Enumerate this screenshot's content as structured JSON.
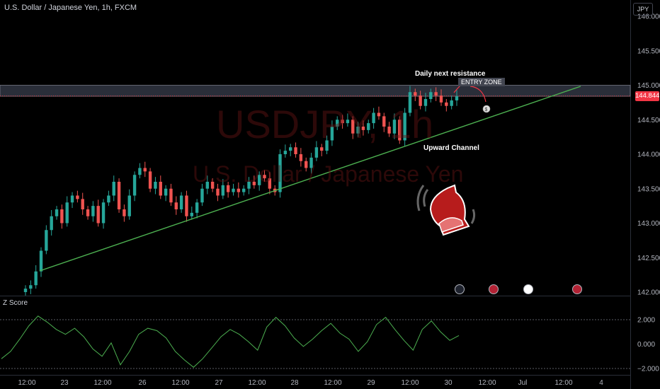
{
  "header": {
    "symbol_title": "U.S. Dollar / Japanese Yen, 1h, FXCM"
  },
  "watermark": {
    "line1": "USDJPY, 1h",
    "line2": "U.S. Dollar / Japanese Yen"
  },
  "currency_button": "JPY",
  "last_price": "144.844",
  "indicator": {
    "name": "Z Score",
    "ticks": [
      "2.000",
      "0.000",
      "−2.000"
    ],
    "levels": [
      2,
      0,
      -2
    ]
  },
  "price_axis": {
    "ticks": [
      "146.000",
      "145.500",
      "145.000",
      "144.500",
      "144.000",
      "143.500",
      "143.000",
      "142.500",
      "142.000"
    ]
  },
  "time_axis": {
    "ticks": [
      "12:00",
      "23",
      "12:00",
      "26",
      "12:00",
      "27",
      "12:00",
      "28",
      "12:00",
      "29",
      "12:00",
      "30",
      "12:00",
      "Jul",
      "12:00",
      "4"
    ]
  },
  "annotations": {
    "resistance_label": "Daily next resistance",
    "entry_label": "ENTRY ZONE",
    "channel_label": "Upward Channel"
  },
  "colors": {
    "up": "#26a69a",
    "down": "#ef5350",
    "trendline": "#4caf50",
    "zscore": "#4caf50",
    "last_price": "#f23645"
  },
  "icons": [
    "bell-icon",
    "lightning-event-icon",
    "us-flag-event-icon",
    "jp-flag-event-icon",
    "us-flag-event-icon"
  ],
  "chart_data": {
    "type": "candlestick",
    "title": "U.S. Dollar / Japanese Yen, 1h, FXCM",
    "ylim": [
      142.0,
      146.1
    ],
    "close_series": [
      142.05,
      142.1,
      142.3,
      142.6,
      142.9,
      143.1,
      143.2,
      143.0,
      143.3,
      143.4,
      143.35,
      143.2,
      143.1,
      143.25,
      143.0,
      143.3,
      143.4,
      143.6,
      143.2,
      143.1,
      143.4,
      143.7,
      143.8,
      143.75,
      143.5,
      143.6,
      143.4,
      143.5,
      143.3,
      143.2,
      143.4,
      143.1,
      143.15,
      143.3,
      143.5,
      143.6,
      143.5,
      143.4,
      143.55,
      143.45,
      143.5,
      143.45,
      143.5,
      143.6,
      143.55,
      143.7,
      143.65,
      143.5,
      143.45,
      144.0,
      144.05,
      144.1,
      144.0,
      143.9,
      143.8,
      143.95,
      144.1,
      144.05,
      144.2,
      144.4,
      144.5,
      144.45,
      144.5,
      144.3,
      144.4,
      144.35,
      144.45,
      144.6,
      144.55,
      144.4,
      144.3,
      144.5,
      144.2,
      144.6,
      144.9,
      144.85,
      144.7,
      144.8,
      144.9,
      144.85,
      144.75,
      144.7,
      144.78,
      144.84
    ],
    "trendline": {
      "from": [
        "22 06:00",
        142.3
      ],
      "to": [
        "3 Jul",
        144.97
      ]
    },
    "zones": {
      "entry_zone_top": 145.0,
      "entry_zone_bottom": 144.84
    },
    "zscore_series": [
      -1.2,
      -0.6,
      0.4,
      1.5,
      2.3,
      1.8,
      1.2,
      0.8,
      1.3,
      0.6,
      -0.4,
      -1.0,
      0.1,
      -1.7,
      -0.6,
      0.8,
      1.3,
      1.1,
      0.5,
      -0.6,
      -1.3,
      -1.9,
      -1.2,
      -0.3,
      0.6,
      1.2,
      0.8,
      0.2,
      -0.5,
      1.4,
      2.2,
      1.5,
      0.5,
      -0.2,
      0.4,
      1.1,
      1.7,
      0.9,
      0.4,
      -0.6,
      0.2,
      1.6,
      2.2,
      1.2,
      0.3,
      -0.5,
      1.2,
      1.9,
      1.0,
      0.3,
      0.7
    ]
  }
}
